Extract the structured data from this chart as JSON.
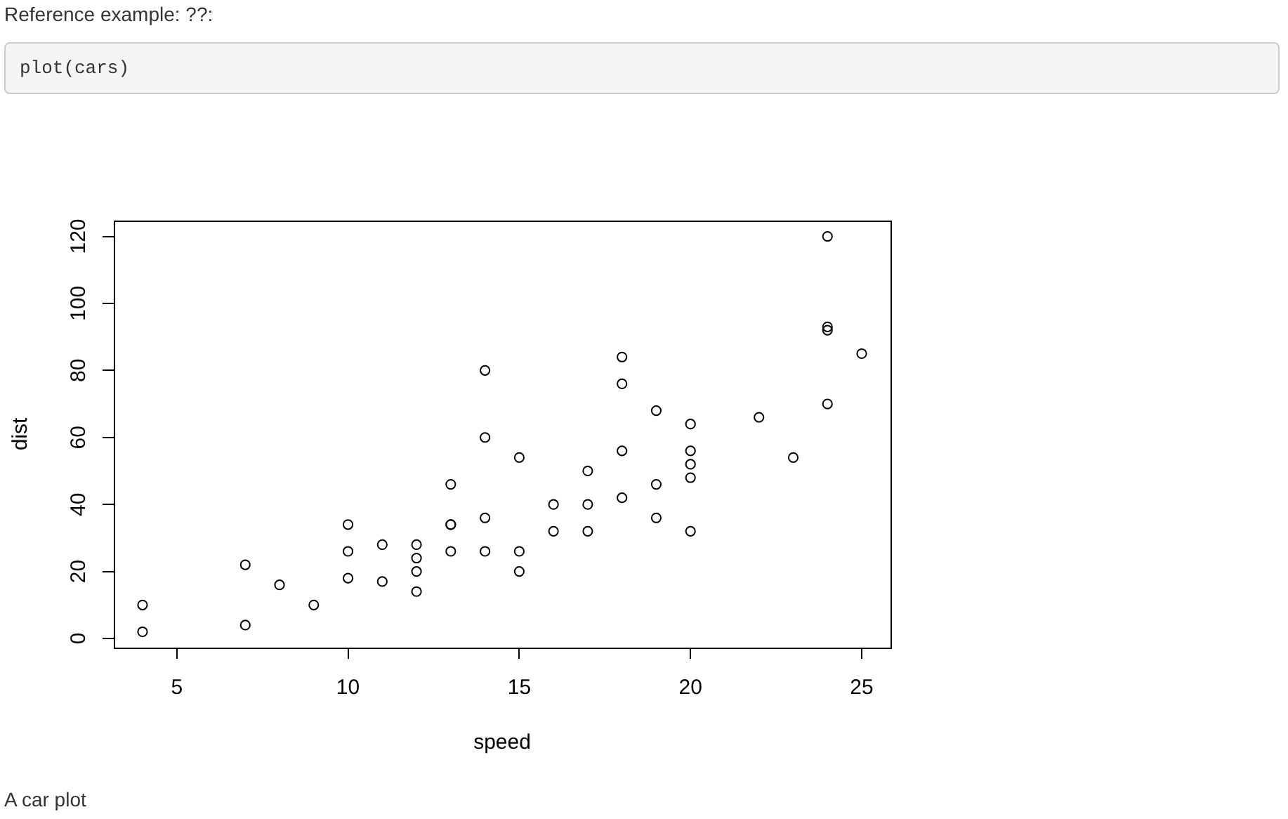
{
  "chart_data": {
    "type": "scatter",
    "xlabel": "speed",
    "ylabel": "dist",
    "annotations": [
      "Reference example: ??:",
      "plot(cars)",
      "A car plot"
    ],
    "x": [
      4,
      4,
      7,
      7,
      8,
      9,
      10,
      10,
      10,
      11,
      11,
      12,
      12,
      12,
      12,
      13,
      13,
      13,
      13,
      14,
      14,
      14,
      14,
      15,
      15,
      15,
      16,
      16,
      17,
      17,
      17,
      18,
      18,
      18,
      18,
      19,
      19,
      19,
      20,
      20,
      20,
      20,
      20,
      22,
      23,
      24,
      24,
      24,
      24,
      25
    ],
    "values": [
      2,
      10,
      4,
      22,
      16,
      10,
      18,
      26,
      34,
      17,
      28,
      14,
      20,
      24,
      28,
      26,
      34,
      34,
      46,
      26,
      36,
      60,
      80,
      20,
      26,
      54,
      32,
      40,
      32,
      40,
      50,
      42,
      56,
      76,
      84,
      36,
      46,
      68,
      32,
      48,
      52,
      56,
      64,
      66,
      54,
      70,
      92,
      93,
      120,
      85
    ],
    "color": "#000000",
    "marker": "circle",
    "xlim": [
      3.16,
      25.84
    ],
    "xticks": [
      5,
      10,
      15,
      20,
      25
    ],
    "ylim": [
      -2.72,
      124.72
    ],
    "yticks": [
      0,
      20,
      40,
      60,
      80,
      100,
      120
    ]
  }
}
